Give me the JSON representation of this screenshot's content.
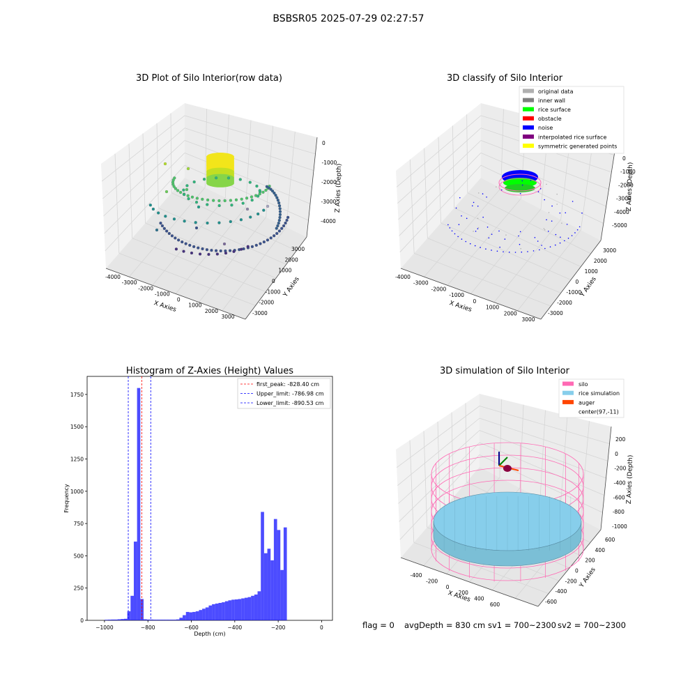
{
  "figure": {
    "suptitle": "BSBSR05 2025-07-29 02:27:57",
    "status": {
      "flag": "flag = 0",
      "avg_depth": "avgDepth = 830 cm",
      "sv1": "sv1 = 700~2300",
      "sv2": "sv2 = 700~2300"
    }
  },
  "colors": {
    "silo": "#ff69b4",
    "rice_simulation": "#87ceeb",
    "auger": "#ff4500",
    "hist_bar": "#0000ff",
    "first_peak": "#ff0000",
    "limits": "#0000ff",
    "noise": "#0000ff",
    "rice_surface": "#00ff00",
    "original": "#b0b0b0"
  },
  "chart_data": [
    {
      "id": "raw",
      "type": "scatter",
      "title": "3D Plot of Silo Interior(row data)",
      "xlabel": "X Axies",
      "ylabel": "Y Axies",
      "zlabel": "Z Axies (Depth)",
      "xticks": [
        "-4000",
        "-3000",
        "-2000",
        "-1000",
        "0",
        "1000",
        "2000",
        "3000"
      ],
      "yticks": [
        "-3000",
        "-2000",
        "-1000",
        "0",
        "1000",
        "2000",
        "3000"
      ],
      "zticks": [
        "-4000",
        "-3000",
        "-2000",
        "-1000",
        "0"
      ],
      "series": [
        {
          "values": [
            [
              -1800,
              0,
              -800
            ],
            [
              -1200,
              200,
              -850
            ],
            [
              -600,
              600,
              -900
            ],
            [
              -200,
              1000,
              -950
            ],
            [
              300,
              -300,
              -900
            ],
            [
              900,
              500,
              -850
            ],
            [
              1400,
              -100,
              -880
            ],
            [
              2200,
              -1200,
              -1600
            ],
            [
              2600,
              -900,
              -2000
            ],
            [
              2800,
              -400,
              -2500
            ]
          ]
        },
        {
          "values": [
            [
              -2600,
              600,
              -1800
            ],
            [
              -2000,
              -200,
              -2100
            ],
            [
              -1000,
              -600,
              -2200
            ],
            [
              0,
              -1000,
              -2300
            ],
            [
              800,
              -1200,
              -2400
            ],
            [
              1600,
              -1400,
              -2400
            ],
            [
              2400,
              -800,
              -2900
            ],
            [
              -3600,
              -600,
              -3700
            ],
            [
              -3000,
              -1600,
              -3900
            ],
            [
              -2000,
              -2400,
              -4000
            ],
            [
              -800,
              -2900,
              -4100
            ],
            [
              600,
              -3000,
              -4100
            ],
            [
              1800,
              -2500,
              -4000
            ],
            [
              2800,
              -1400,
              -3800
            ]
          ]
        }
      ]
    },
    {
      "id": "classify",
      "type": "scatter",
      "title": "3D classify of Silo Interior",
      "xlabel": "X Axies",
      "ylabel": "Y Axies",
      "zlabel": "Z Axies (Depth)",
      "xticks": [
        "-4000",
        "-3000",
        "-2000",
        "-1000",
        "0",
        "1000",
        "2000",
        "3000"
      ],
      "yticks": [
        "-3000",
        "-2000",
        "-1000",
        "0",
        "1000",
        "2000",
        "3000"
      ],
      "zticks": [
        "-5000",
        "-4000",
        "-3000",
        "-2000",
        "-1000",
        "0"
      ],
      "legend": {
        "placement": "top-right",
        "items": [
          {
            "label": "original data",
            "color": "#b0b0b0"
          },
          {
            "label": "inner wall",
            "color": "#808080"
          },
          {
            "label": "rice surface",
            "color": "#00ff00"
          },
          {
            "label": "obstacle",
            "color": "#ff0000"
          },
          {
            "label": "noise",
            "color": "#0000ff"
          },
          {
            "label": "interpolated rice surface",
            "color": "#800080"
          },
          {
            "label": "symmetric generated points",
            "color": "#ffff00"
          }
        ]
      }
    },
    {
      "id": "histogram",
      "type": "bar",
      "title": "Histogram of Z-Axies (Height) Values",
      "xlabel": "Depth (cm)",
      "ylabel": "Frequency",
      "xlim": [
        -1080,
        50
      ],
      "ylim": [
        0,
        1890
      ],
      "xticks": [
        -1000,
        -800,
        -600,
        -400,
        -200,
        0
      ],
      "yticks": [
        0,
        250,
        500,
        750,
        1000,
        1250,
        1500,
        1750
      ],
      "bin_width": 15,
      "bins_left_edges": [
        -1000,
        -985,
        -970,
        -955,
        -940,
        -925,
        -910,
        -895,
        -880,
        -865,
        -850,
        -835,
        -820,
        -805,
        -790,
        -775,
        -760,
        -745,
        -730,
        -715,
        -700,
        -685,
        -670,
        -655,
        -640,
        -625,
        -610,
        -595,
        -580,
        -565,
        -550,
        -535,
        -520,
        -505,
        -490,
        -475,
        -460,
        -445,
        -430,
        -415,
        -400,
        -385,
        -370,
        -355,
        -340,
        -325,
        -310,
        -295,
        -280,
        -265,
        -250,
        -235,
        -220,
        -205,
        -190,
        -175,
        -160,
        -145,
        -130,
        -115,
        -100,
        -85,
        -70,
        -55,
        -40,
        -25,
        -10
      ],
      "values": [
        4,
        5,
        6,
        6,
        8,
        10,
        12,
        70,
        190,
        610,
        1800,
        165,
        8,
        6,
        6,
        5,
        5,
        5,
        5,
        5,
        5,
        5,
        7,
        20,
        40,
        65,
        62,
        65,
        70,
        80,
        90,
        100,
        115,
        125,
        130,
        135,
        140,
        148,
        155,
        160,
        162,
        165,
        170,
        175,
        180,
        190,
        200,
        225,
        840,
        520,
        555,
        465,
        785,
        700,
        390,
        720,
        0,
        0,
        0,
        0,
        0,
        0,
        0,
        0,
        0,
        0,
        0
      ],
      "lines": [
        {
          "label": "first_peak: -828.40 cm",
          "x": -828.4,
          "color": "#ff0000"
        },
        {
          "label": "Upper_limit: -786.98 cm",
          "x": -786.98,
          "color": "#0000ff"
        },
        {
          "label": "Lower_limit: -890.53 cm",
          "x": -890.53,
          "color": "#0000ff"
        }
      ],
      "legend": {
        "placement": "top-right"
      }
    },
    {
      "id": "simulation",
      "type": "scatter",
      "title": "3D simulation of Silo Interior",
      "xlabel": "X Axies",
      "ylabel": "Y Axies",
      "zlabel": "Z Axies (Depth)",
      "xticks": [
        "-400",
        "-200",
        "0",
        "200",
        "400",
        "600"
      ],
      "yticks": [
        "-600",
        "-400",
        "-200",
        "0",
        "200",
        "400",
        "600"
      ],
      "zticks": [
        "-1000",
        "-800",
        "-600",
        "-400",
        "-200",
        "0",
        "200"
      ],
      "legend": {
        "placement": "top-right",
        "items": [
          {
            "label": "silo",
            "color": "#ff69b4"
          },
          {
            "label": "rice simulation",
            "color": "#87ceeb"
          },
          {
            "label": "auger",
            "color": "#ff4500"
          },
          {
            "label": "center(97,-11)",
            "color": "#ffffff"
          }
        ]
      }
    }
  ]
}
